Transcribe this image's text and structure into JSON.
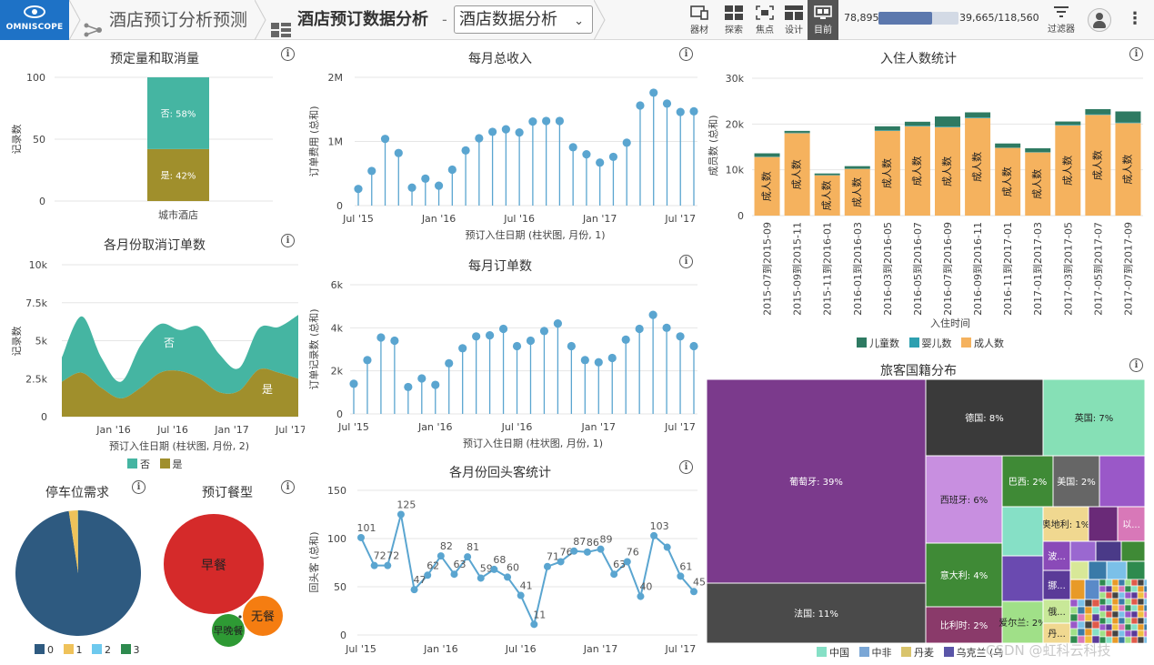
{
  "app": {
    "logo_text": "OMNISCOPE"
  },
  "breadcrumb": {
    "project": "酒店预订分析预测",
    "report": "酒店预订数据分析",
    "dash": "-",
    "view_select": "酒店数据分析"
  },
  "toolbar": {
    "items": [
      {
        "label": "器材",
        "icon": "device-icon"
      },
      {
        "label": "探索",
        "icon": "grid-icon"
      },
      {
        "label": "焦点",
        "icon": "focus-icon"
      },
      {
        "label": "设计",
        "icon": "layout-icon"
      },
      {
        "label": "目前",
        "icon": "monitor-icon",
        "active": true
      }
    ],
    "record_count": "78,895",
    "record_total": "39,665/118,560",
    "record_fraction": 0.665,
    "filter_label": "过滤器"
  },
  "tiles": {
    "booking_cancel": {
      "title": "预定量和取消量",
      "ylabel": "记录数",
      "category": "城市酒店",
      "yticks": [
        "100",
        "50",
        "0"
      ],
      "segments": [
        {
          "label": "否: 58%",
          "value": 58,
          "color": "#45b5a2"
        },
        {
          "label": "是: 42%",
          "value": 42,
          "color": "#a08f2c"
        }
      ]
    },
    "monthly_cancel": {
      "title": "各月份取消订单数",
      "ylabel": "记录数",
      "xlabel": "预订入住日期 (柱状图, 月份, 2)",
      "yticks": [
        "10k",
        "7.5k",
        "5k",
        "2.5k",
        "0"
      ],
      "xticks": [
        "Jan '16",
        "Jul '16",
        "Jan '17",
        "Jul '17"
      ],
      "area_labels": [
        "否",
        "是"
      ],
      "legend": [
        {
          "label": "否",
          "color": "#45b5a2"
        },
        {
          "label": "是",
          "color": "#a08f2c"
        }
      ]
    },
    "parking": {
      "title": "停车位需求",
      "legend": [
        {
          "label": "0",
          "color": "#2e5a80"
        },
        {
          "label": "1",
          "color": "#efc25a"
        },
        {
          "label": "2",
          "color": "#6ec9ee"
        },
        {
          "label": "3",
          "color": "#2e8a4e"
        }
      ]
    },
    "meal": {
      "title": "预订餐型",
      "bubbles": [
        "早餐",
        "无餐",
        "早晚餐"
      ]
    },
    "monthly_revenue": {
      "title": "每月总收入",
      "ylabel": "订单费用 (总和)",
      "xlabel": "预订入住日期 (柱状图, 月份, 1)",
      "yticks": [
        "2M",
        "1M",
        "0"
      ],
      "xticks": [
        "Jul '15",
        "Jan '16",
        "Jul '16",
        "Jan '17",
        "Jul '17"
      ]
    },
    "monthly_orders": {
      "title": "每月订单数",
      "ylabel": "订单记录数 (总和)",
      "xlabel": "预订入住日期 (柱状图, 月份, 1)",
      "yticks": [
        "6k",
        "4k",
        "2k",
        "0"
      ],
      "xticks": [
        "Jul '15",
        "Jan '16",
        "Jul '16",
        "Jan '17",
        "Jul '17"
      ]
    },
    "repeat_guests": {
      "title": "各月份回头客统计",
      "ylabel": "回头客 (总和)",
      "yticks": [
        "150",
        "100",
        "50",
        "0"
      ],
      "xticks": [
        "Jul '15",
        "Jan '16",
        "Jul '16",
        "Jan '17",
        "Jul '17"
      ]
    },
    "guests": {
      "title": "入住人数统计",
      "ylabel": "成员数 (总和)",
      "xlabel": "入住时间",
      "yticks": [
        "30k",
        "20k",
        "10k",
        "0"
      ],
      "bar_label": "成人数",
      "legend": [
        {
          "label": "儿童数",
          "color": "#2e7a62"
        },
        {
          "label": "婴儿数",
          "color": "#2ea0b0"
        },
        {
          "label": "成人数",
          "color": "#f5b25e"
        }
      ]
    },
    "nationality": {
      "title": "旅客国籍分布",
      "legend": [
        {
          "label": "中国",
          "color": "#86e0c6"
        },
        {
          "label": "中非",
          "color": "#7ba7d6"
        },
        {
          "label": "丹麦",
          "color": "#d9c46c"
        },
        {
          "label": "乌克兰 (乌",
          "color": "#5a55a8"
        }
      ]
    }
  },
  "chart_data": [
    {
      "type": "bar",
      "title": "预定量和取消量",
      "categories": [
        "城市酒店"
      ],
      "ylabel": "记录数",
      "ylim": [
        0,
        100
      ],
      "series": [
        {
          "name": "是",
          "values": [
            42
          ]
        },
        {
          "name": "否",
          "values": [
            58
          ]
        }
      ]
    },
    {
      "type": "area",
      "title": "各月份取消订单数",
      "ylabel": "记录数",
      "xlabel": "预订入住日期 (柱状图, 月份, 2)",
      "ylim": [
        0,
        10000
      ],
      "x": [
        "2015-07",
        "2015-09",
        "2015-11",
        "2016-01",
        "2016-03",
        "2016-05",
        "2016-07",
        "2016-09",
        "2016-11",
        "2017-01",
        "2017-03",
        "2017-05",
        "2017-07"
      ],
      "series": [
        {
          "name": "是",
          "values": [
            2300,
            2900,
            1900,
            1200,
            1900,
            2900,
            3000,
            2500,
            1600,
            1700,
            3100,
            2900,
            2500
          ]
        },
        {
          "name": "否",
          "values": [
            1600,
            3700,
            2000,
            1100,
            2800,
            3200,
            2700,
            3400,
            2500,
            1500,
            2700,
            3000,
            4200
          ]
        }
      ]
    },
    {
      "type": "pie",
      "title": "停车位需求",
      "categories": [
        "0",
        "1",
        "2",
        "3"
      ],
      "values": [
        97.6,
        2.3,
        0.05,
        0.05
      ]
    },
    {
      "type": "bubble",
      "title": "预订餐型",
      "categories": [
        "早餐",
        "无餐",
        "早晚餐"
      ],
      "values": [
        100,
        14,
        10
      ]
    },
    {
      "type": "line",
      "title": "每月总收入",
      "ylabel": "订单费用 (总和)",
      "xlabel": "预订入住日期 (柱状图, 月份, 1)",
      "ylim": [
        0,
        2000000
      ],
      "x": [
        "2015-07",
        "2015-08",
        "2015-09",
        "2015-10",
        "2015-11",
        "2015-12",
        "2016-01",
        "2016-02",
        "2016-03",
        "2016-04",
        "2016-05",
        "2016-06",
        "2016-07",
        "2016-08",
        "2016-09",
        "2016-10",
        "2016-11",
        "2016-12",
        "2017-01",
        "2017-02",
        "2017-03",
        "2017-04",
        "2017-05",
        "2017-06",
        "2017-07",
        "2017-08"
      ],
      "values": [
        260000,
        540000,
        1040000,
        820000,
        280000,
        420000,
        310000,
        560000,
        860000,
        1050000,
        1150000,
        1190000,
        1140000,
        1310000,
        1320000,
        1320000,
        910000,
        800000,
        670000,
        760000,
        980000,
        1560000,
        1760000,
        1590000,
        1460000,
        1470000
      ]
    },
    {
      "type": "line",
      "title": "每月订单数",
      "ylabel": "订单记录数 (总和)",
      "xlabel": "预订入住日期 (柱状图, 月份, 1)",
      "ylim": [
        0,
        6000
      ],
      "x": [
        "2015-07",
        "2015-08",
        "2015-09",
        "2015-10",
        "2015-11",
        "2015-12",
        "2016-01",
        "2016-02",
        "2016-03",
        "2016-04",
        "2016-05",
        "2016-06",
        "2016-07",
        "2016-08",
        "2016-09",
        "2016-10",
        "2016-11",
        "2016-12",
        "2017-01",
        "2017-02",
        "2017-03",
        "2017-04",
        "2017-05",
        "2017-06",
        "2017-07",
        "2017-08"
      ],
      "values": [
        1400,
        2500,
        3550,
        3400,
        1250,
        1650,
        1350,
        2350,
        3050,
        3600,
        3650,
        3950,
        3150,
        3400,
        3850,
        4200,
        3150,
        2500,
        2400,
        2600,
        3450,
        3950,
        4600,
        4000,
        3600,
        3150
      ]
    },
    {
      "type": "line",
      "title": "各月份回头客统计",
      "ylabel": "回头客 (总和)",
      "ylim": [
        0,
        150
      ],
      "x": [
        "2015-07",
        "2015-08",
        "2015-09",
        "2015-10",
        "2015-11",
        "2015-12",
        "2016-01",
        "2016-02",
        "2016-03",
        "2016-04",
        "2016-05",
        "2016-06",
        "2016-07",
        "2016-08",
        "2016-09",
        "2016-10",
        "2016-11",
        "2016-12",
        "2017-01",
        "2017-02",
        "2017-03",
        "2017-04",
        "2017-05",
        "2017-06",
        "2017-07",
        "2017-08"
      ],
      "values": [
        101,
        72,
        72,
        125,
        47,
        62,
        82,
        63,
        81,
        59,
        68,
        60,
        41,
        11,
        71,
        76,
        87,
        86,
        89,
        63,
        76,
        40,
        103,
        91,
        61,
        45
      ],
      "labels": [
        "101",
        "72",
        "72",
        "125",
        "47",
        "62",
        "82",
        "63",
        "81",
        "59",
        "68",
        "60",
        "41",
        "11",
        "71",
        "76",
        "87",
        "86",
        "89",
        "63",
        "76",
        "40",
        "103",
        "",
        "61",
        "45"
      ]
    },
    {
      "type": "bar",
      "title": "入住人数统计",
      "ylabel": "成员数 (总和)",
      "xlabel": "入住时间",
      "ylim": [
        0,
        30000
      ],
      "categories": [
        "2015-07到2015-09",
        "2015-09到2015-11",
        "2015-11到2016-01",
        "2016-01到2016-03",
        "2016-03到2016-05",
        "2016-05到2016-07",
        "2016-07到2016-09",
        "2016-09到2016-11",
        "2016-11到2017-01",
        "2017-01到2017-03",
        "2017-03到2017-05",
        "2017-05到2017-07",
        "2017-07到2017-09"
      ],
      "series": [
        {
          "name": "成人数",
          "values": [
            12800,
            18000,
            8800,
            10200,
            18500,
            19500,
            19300,
            21300,
            14800,
            13800,
            19700,
            22000,
            20200
          ]
        },
        {
          "name": "婴儿数",
          "values": [
            100,
            100,
            50,
            50,
            100,
            150,
            150,
            150,
            100,
            100,
            150,
            150,
            150
          ]
        },
        {
          "name": "儿童数",
          "values": [
            700,
            400,
            350,
            550,
            900,
            850,
            2200,
            1100,
            850,
            800,
            700,
            1100,
            2400
          ]
        }
      ]
    },
    {
      "type": "treemap",
      "title": "旅客国籍分布",
      "categories": [
        "葡萄牙",
        "法国",
        "德国",
        "英国",
        "西班牙",
        "意大利",
        "比利时",
        "巴西",
        "美国",
        "奥地利",
        "爱尔兰"
      ],
      "values": [
        39,
        11,
        8,
        7,
        6,
        4,
        2,
        2,
        2,
        1,
        2
      ],
      "labels": [
        "葡萄牙: 39%",
        "法国: 11%",
        "德国: 8%",
        "英国: 7%",
        "西班牙: 6%",
        "意大利: 4%",
        "比利时: 2%",
        "巴西: 2%",
        "美国: 2%",
        "奥地利: 1%",
        "爱尔兰: 2%"
      ],
      "small_labels": [
        "以...",
        "波...",
        "挪...",
        "俄...",
        "丹..."
      ]
    }
  ],
  "watermark": "CSDN @虹科云科技"
}
